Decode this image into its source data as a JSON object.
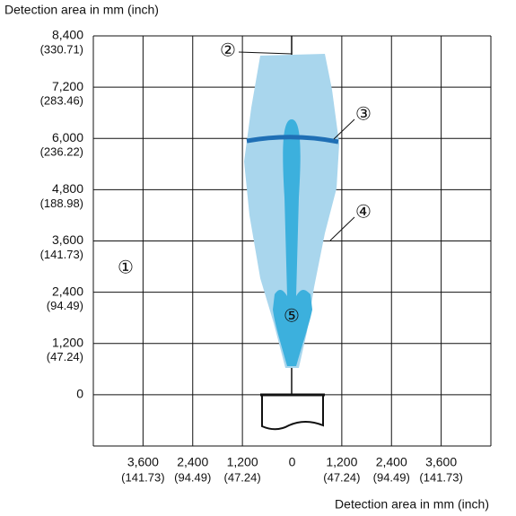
{
  "chart_data": {
    "type": "detection-area",
    "title": "Detection area in mm (inch)",
    "x_label": "Detection area in mm (inch)",
    "xlim": [
      -4800,
      4800
    ],
    "ylim": [
      -1200,
      8400
    ],
    "xticks": [
      {
        "value": -3600,
        "label": "3,600"
      },
      {
        "value": -2400,
        "label": "2,400"
      },
      {
        "value": -1200,
        "label": "1,200"
      },
      0,
      {
        "value": 1200,
        "label": "1,200"
      },
      {
        "value": 2400,
        "label": "2,400"
      },
      {
        "value": 3600,
        "label": "3,600"
      }
    ],
    "xtick_inch_labels": [
      "(141.73)",
      "(94.49)",
      "(47.24)",
      null,
      "(47.24)",
      "(94.49)",
      "(141.73)"
    ],
    "yticks": [
      0,
      {
        "value": 1200,
        "label": "1,200"
      },
      {
        "value": 2400,
        "label": "2,400"
      },
      {
        "value": 3600,
        "label": "3,600"
      },
      {
        "value": 4800,
        "label": "4,800"
      },
      {
        "value": 6000,
        "label": "6,000"
      },
      {
        "value": 7200,
        "label": "7,200"
      },
      {
        "value": 8400,
        "label": "8,400"
      }
    ],
    "ytick_inch_labels": [
      null,
      "(47.24)",
      "(94.49)",
      "(141.73)",
      "(188.98)",
      "(236.22)",
      "(283.46)",
      "(330.71)"
    ],
    "annotations": [
      "①",
      "②",
      "③",
      "④",
      "⑤"
    ],
    "grid": true
  }
}
